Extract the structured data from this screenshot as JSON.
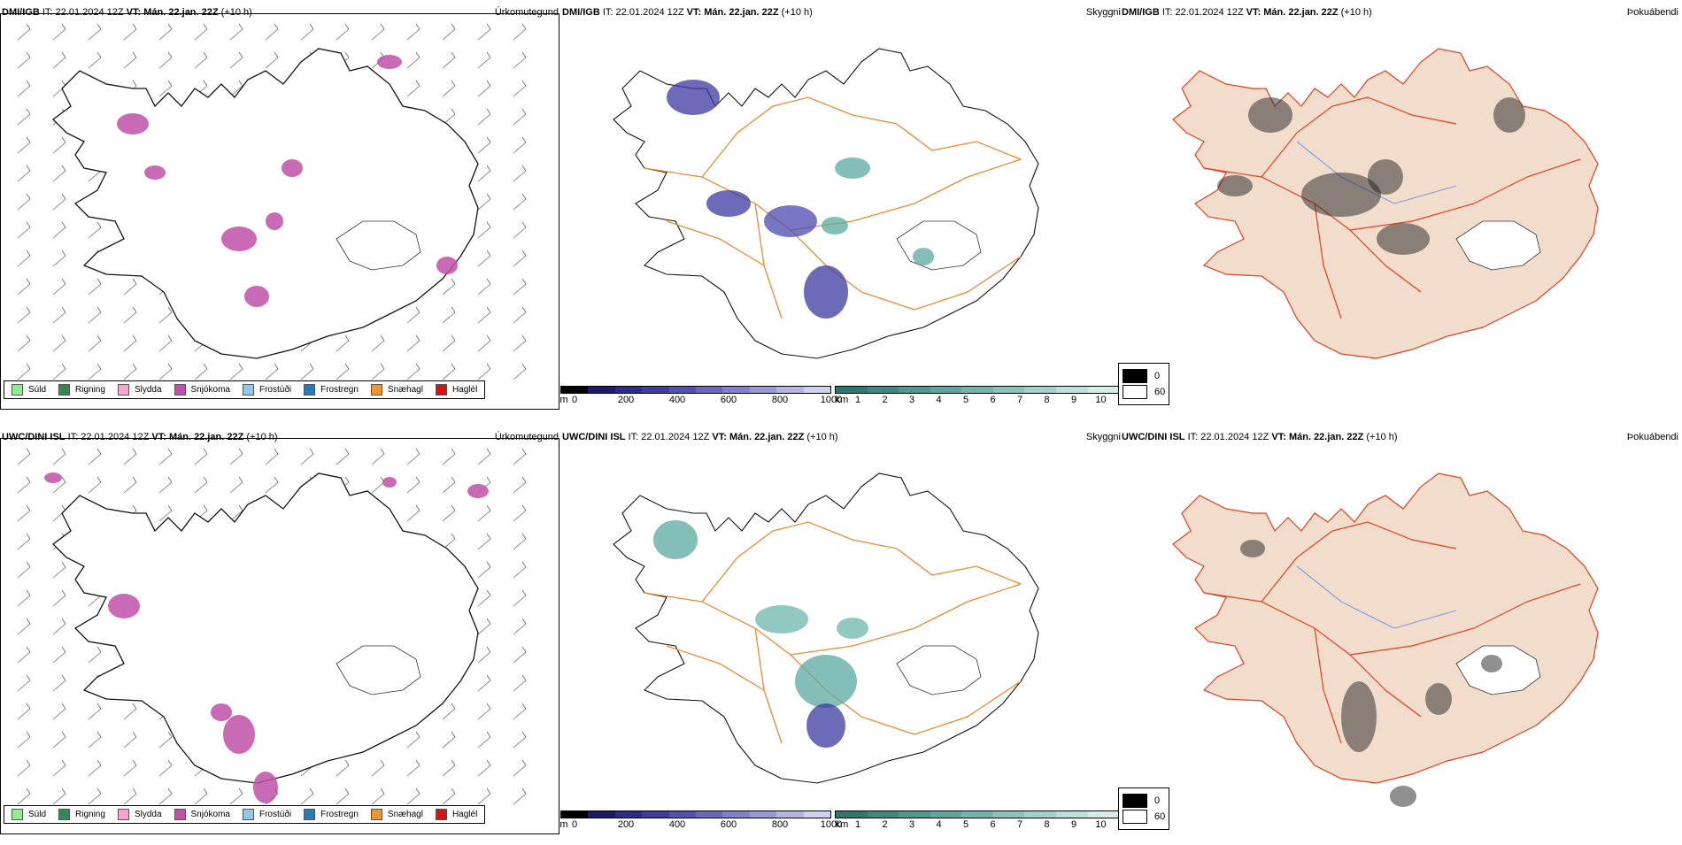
{
  "rows": [
    {
      "model": "DMI/IGB",
      "it_label": "IT:",
      "it_value": "22.01.2024 12Z",
      "vt_label": "VT:",
      "vt_value": "Mán. 22.jan. 22Z",
      "lead": "(+10 h)"
    },
    {
      "model": "UWC/DINI ISL",
      "it_label": "IT:",
      "it_value": "22.01.2024 12Z",
      "vt_label": "VT:",
      "vt_value": "Mán. 22.jan. 22Z",
      "lead": "(+10 h)"
    }
  ],
  "panel_titles": {
    "precip": "Úrkomutegund",
    "visibility": "Skyggni",
    "fog": "Þokuábendi"
  },
  "precip_legend": [
    {
      "label": "Súld",
      "color": "#90ee90"
    },
    {
      "label": "Rigning",
      "color": "#2e8b57"
    },
    {
      "label": "Slydda",
      "color": "#f4a6d0"
    },
    {
      "label": "Snjókoma",
      "color": "#c050a8"
    },
    {
      "label": "Frostúði",
      "color": "#8ec8f0"
    },
    {
      "label": "Frostregn",
      "color": "#2a7ab8"
    },
    {
      "label": "Snæhagl",
      "color": "#f0962a"
    },
    {
      "label": "Haglél",
      "color": "#e01010"
    }
  ],
  "ceiling_bar": {
    "unit": "m",
    "ticks": [
      "0",
      "200",
      "400",
      "600",
      "800",
      "1000"
    ],
    "colors": [
      "#000000",
      "#1a1a6e",
      "#2a2a90",
      "#3c3ca8",
      "#5050b8",
      "#6868c4",
      "#8080d0",
      "#9898dc",
      "#b4b4e8",
      "#d0d0f2"
    ]
  },
  "visibility_bar": {
    "unit": "km",
    "ticks": [
      "1",
      "2",
      "3",
      "4",
      "5",
      "6",
      "7",
      "8",
      "9",
      "10"
    ],
    "colors": [
      "#2a7a72",
      "#3a8a82",
      "#4a9a92",
      "#5aa8a0",
      "#6eb6ae",
      "#86c4bc",
      "#a0d2cc",
      "#bce0da",
      "#d6ece8"
    ]
  },
  "fog_legend": [
    {
      "label": "0",
      "color": "#000000"
    },
    {
      "label": "60",
      "color": "#ffffff"
    }
  ]
}
